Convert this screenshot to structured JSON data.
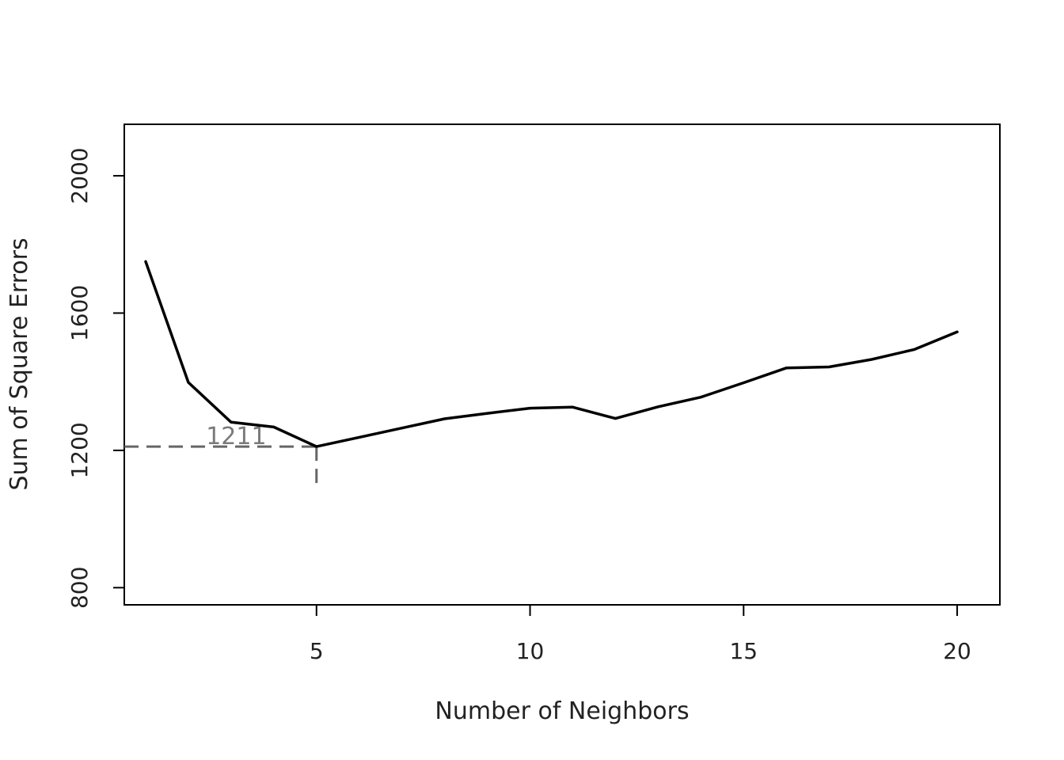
{
  "chart_data": {
    "type": "line",
    "title": "",
    "xlabel": "Number of Neighbors",
    "ylabel": "Sum of Square Errors",
    "xlim": [
      0.5,
      21
    ],
    "ylim": [
      750,
      2150
    ],
    "x_ticks": [
      5,
      10,
      15,
      20
    ],
    "y_ticks": [
      800,
      1200,
      1600,
      2000
    ],
    "x_tick_labels": [
      "5",
      "10",
      "15",
      "20"
    ],
    "y_tick_labels": [
      "800",
      "1200",
      "1600",
      "2000"
    ],
    "grid": false,
    "legend": "none",
    "series": [
      {
        "x": [
          1,
          2,
          3,
          4,
          5,
          6,
          7,
          8,
          9,
          10,
          11,
          12,
          13,
          14,
          15,
          16,
          17,
          18,
          19,
          20
        ],
        "values": [
          1750,
          1398,
          1282,
          1268,
          1211,
          1238,
          1265,
          1292,
          1308,
          1323,
          1326,
          1293,
          1327,
          1355,
          1397,
          1440,
          1443,
          1465,
          1494,
          1545
        ],
        "color": "#000000"
      }
    ],
    "annotation": {
      "x": 5,
      "y": 1211,
      "text": "1211",
      "y_bottom": 1105,
      "color": "#666666"
    }
  }
}
